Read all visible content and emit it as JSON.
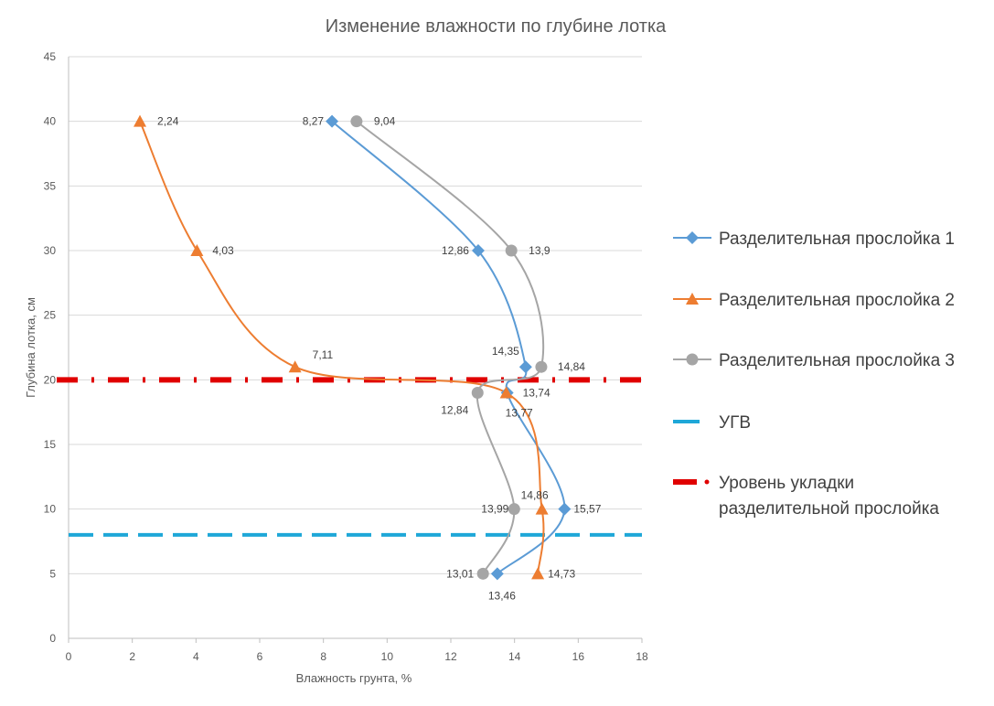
{
  "chart_data": {
    "type": "scatter",
    "title": "Изменение влажности по глубине лотка",
    "xlabel": "Влажность грунта, %",
    "ylabel": "Глубина лотка, см",
    "xlim": [
      0,
      18
    ],
    "ylim": [
      0,
      45
    ],
    "x_ticks": [
      0,
      2,
      4,
      6,
      8,
      10,
      12,
      14,
      16,
      18
    ],
    "y_ticks": [
      0,
      5,
      10,
      15,
      20,
      25,
      30,
      35,
      40,
      45
    ],
    "grid": "horizontal",
    "legend": "right",
    "series": [
      {
        "name": "Разделительная прослойка 1",
        "color": "#5b9bd5",
        "marker": "diamond",
        "smooth": true,
        "points": [
          {
            "x": 8.27,
            "y": 40,
            "label": "8,27"
          },
          {
            "x": 12.86,
            "y": 30,
            "label": "12,86"
          },
          {
            "x": 14.35,
            "y": 21,
            "label": "14,35"
          },
          {
            "x": 13.77,
            "y": 19,
            "label": "13,77"
          },
          {
            "x": 15.57,
            "y": 10,
            "label": "15,57"
          },
          {
            "x": 13.46,
            "y": 5,
            "label": "13,46"
          }
        ]
      },
      {
        "name": "Разделительная прослойка 2",
        "color": "#ed7d31",
        "marker": "triangle",
        "smooth": true,
        "points": [
          {
            "x": 2.24,
            "y": 40,
            "label": "2,24"
          },
          {
            "x": 4.03,
            "y": 30,
            "label": "4,03"
          },
          {
            "x": 7.11,
            "y": 21,
            "label": "7,11"
          },
          {
            "x": 13.74,
            "y": 19,
            "label": "13,74"
          },
          {
            "x": 14.86,
            "y": 10,
            "label": "14,86"
          },
          {
            "x": 14.73,
            "y": 5,
            "label": "14,73"
          }
        ]
      },
      {
        "name": "Разделительная прослойка 3",
        "color": "#a5a5a5",
        "marker": "circle",
        "smooth": true,
        "points": [
          {
            "x": 9.04,
            "y": 40,
            "label": "9,04"
          },
          {
            "x": 13.9,
            "y": 30,
            "label": "13,9"
          },
          {
            "x": 14.84,
            "y": 21,
            "label": "14,84"
          },
          {
            "x": 12.84,
            "y": 19,
            "label": "12,84"
          },
          {
            "x": 13.99,
            "y": 10,
            "label": "13,99"
          },
          {
            "x": 13.01,
            "y": 5,
            "label": "13,01"
          }
        ]
      }
    ],
    "reference_lines": [
      {
        "name": "УГВ",
        "y": 8,
        "color": "#1ea7d8",
        "style": "dash"
      },
      {
        "name": "Уровень укладки разделительной прослойка",
        "y": 20,
        "color": "#e00000",
        "style": "dash-dot"
      }
    ]
  }
}
